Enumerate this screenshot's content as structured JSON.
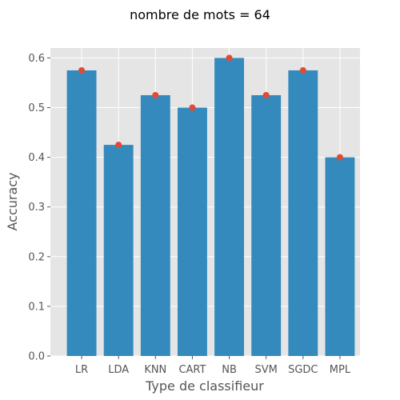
{
  "chart_data": {
    "type": "bar",
    "title": "nombre de mots = 64",
    "xlabel": "Type de classifieur",
    "ylabel": "Accuracy",
    "categories": [
      "LR",
      "LDA",
      "KNN",
      "CART",
      "NB",
      "SVM",
      "SGDC",
      "MPL"
    ],
    "values": [
      0.575,
      0.425,
      0.525,
      0.5,
      0.6,
      0.525,
      0.575,
      0.4
    ],
    "ylim": [
      0,
      0.62
    ],
    "yticks": [
      "0.0",
      "0.1",
      "0.2",
      "0.3",
      "0.4",
      "0.5",
      "0.6"
    ],
    "grid": true,
    "style": "ggplot",
    "colors": {
      "bar": "#348abd",
      "marker": "#e24a33",
      "plot_background": "#e5e5e5",
      "grid": "#ffffff"
    }
  }
}
